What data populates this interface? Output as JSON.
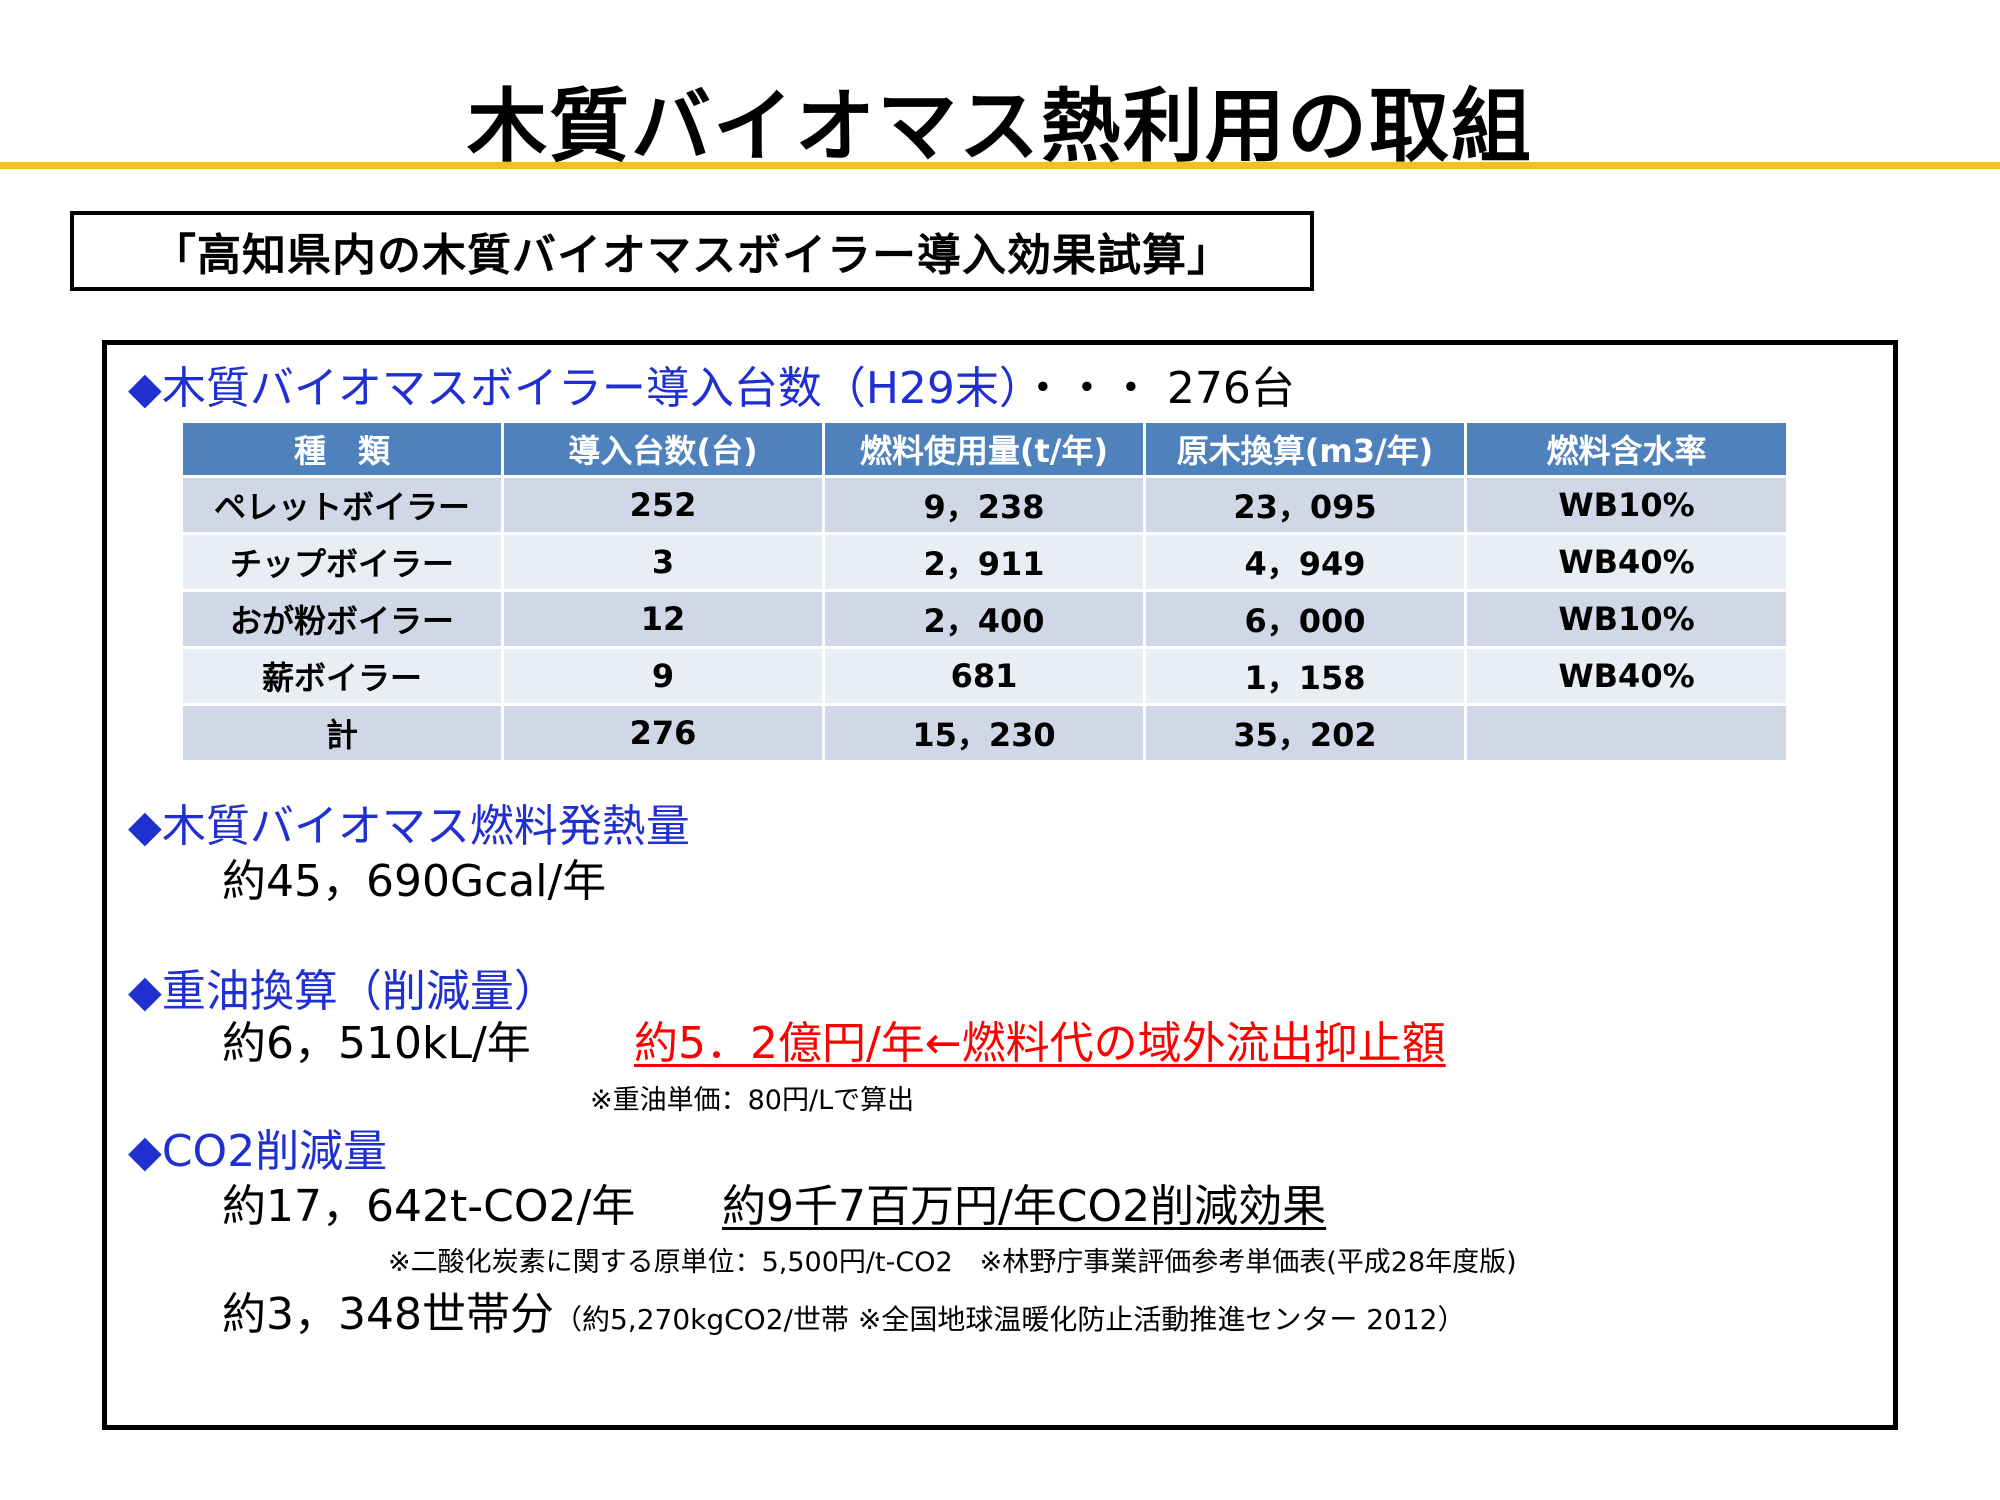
{
  "title": "木質バイオマス熱利用の取組",
  "subtitle": "「高知県内の木質バイオマスボイラー導入効果試算」",
  "section1": {
    "heading": "◆木質バイオマスボイラー導入台数（H29末）",
    "count": "・・・ 276台"
  },
  "table": {
    "headers": [
      "種　類",
      "導入台数(台)",
      "燃料使用量(t/年)",
      "原木換算(m3/年)",
      "燃料含水率"
    ],
    "rows": [
      [
        "ペレットボイラー",
        "252",
        "9，238",
        "23，095",
        "WB10%"
      ],
      [
        "チップボイラー",
        "3",
        "2，911",
        "4，949",
        "WB40%"
      ],
      [
        "おが粉ボイラー",
        "12",
        "2，400",
        "6，000",
        "WB10%"
      ],
      [
        "薪ボイラー",
        "9",
        "681",
        "1，158",
        "WB40%"
      ],
      [
        "計",
        "276",
        "15，230",
        "35，202",
        ""
      ]
    ]
  },
  "section2": {
    "heading": "◆木質バイオマス燃料発熱量",
    "value": "約45，690Gcal/年"
  },
  "section3": {
    "heading": "◆重油換算（削減量）",
    "value": "約6，510kL/年",
    "highlight": "約5．2億円/年←燃料代の域外流出抑止額",
    "note": "※重油単価：80円/Lで算出"
  },
  "section4": {
    "heading": "◆CO2削減量",
    "value": "約17，642t-CO2/年",
    "effect": "約9千7百万円/年CO2削減効果",
    "note": "※二酸化炭素に関する原単位：5,500円/t-CO2　※林野庁事業評価参考単価表(平成28年度版)",
    "households": "約3，348世帯分",
    "households_note": "（約5,270kgCO2/世帯 ※全国地球温暖化防止活動推進センター 2012）"
  }
}
